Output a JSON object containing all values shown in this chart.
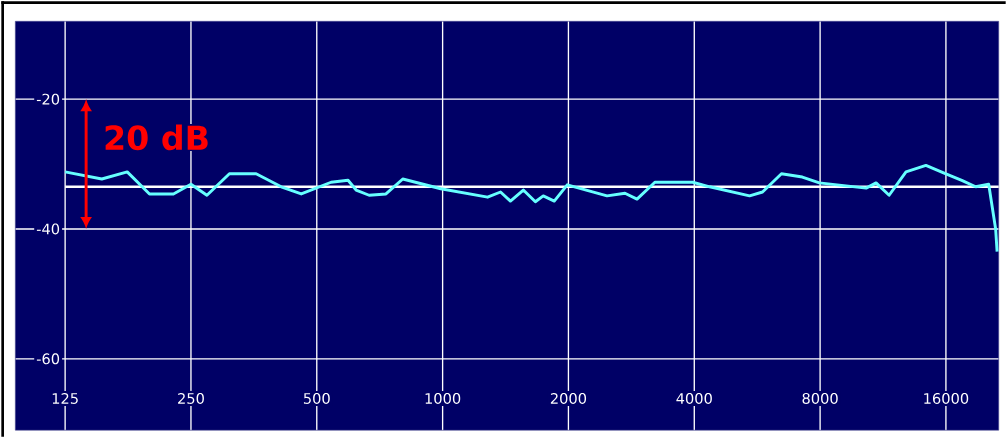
{
  "chart_data": {
    "type": "line",
    "log": "x",
    "grid": true,
    "x": [
      125,
      153,
      176,
      199,
      227,
      250,
      273,
      309,
      358,
      411,
      459,
      541,
      594,
      621,
      667,
      732,
      803,
      990,
      1281,
      1376,
      1453,
      1560,
      1667,
      1741,
      1850,
      1987,
      2474,
      2731,
      2918,
      3220,
      3496,
      3967,
      4354,
      5425,
      5826,
      6466,
      7255,
      7966,
      10310,
      10890,
      11700,
      12840,
      14330,
      16000,
      17460,
      18850,
      20250,
      21040,
      21210
    ],
    "series": [
      {
        "color": "#66ffff",
        "values": [
          -31.2,
          -32.3,
          -31.2,
          -34.6,
          -34.6,
          -33.1,
          -34.8,
          -31.5,
          -31.5,
          -33.5,
          -34.6,
          -32.8,
          -32.5,
          -34.0,
          -34.8,
          -34.6,
          -32.3,
          -33.8,
          -35.1,
          -34.3,
          -35.7,
          -34.0,
          -35.8,
          -34.9,
          -35.7,
          -33.2,
          -34.9,
          -34.5,
          -35.4,
          -32.8,
          -32.8,
          -32.8,
          -33.5,
          -34.9,
          -34.3,
          -31.5,
          -32.0,
          -32.9,
          -33.7,
          -32.9,
          -34.8,
          -31.2,
          -30.2,
          -31.5,
          -32.5,
          -33.5,
          -33.1,
          -40.0,
          -43.5
        ]
      }
    ],
    "xlim": [
      95,
      21400
    ],
    "ylim": [
      -71,
      -8
    ],
    "xticks": [
      125,
      250,
      500,
      1000,
      2000,
      4000,
      8000,
      16000
    ],
    "yticks": [
      -20,
      -40,
      -60
    ],
    "ref_lines": [
      {
        "axis": "y",
        "value": -33.5,
        "color": "#ffffff"
      }
    ],
    "annotations": [
      "20 dB"
    ]
  }
}
